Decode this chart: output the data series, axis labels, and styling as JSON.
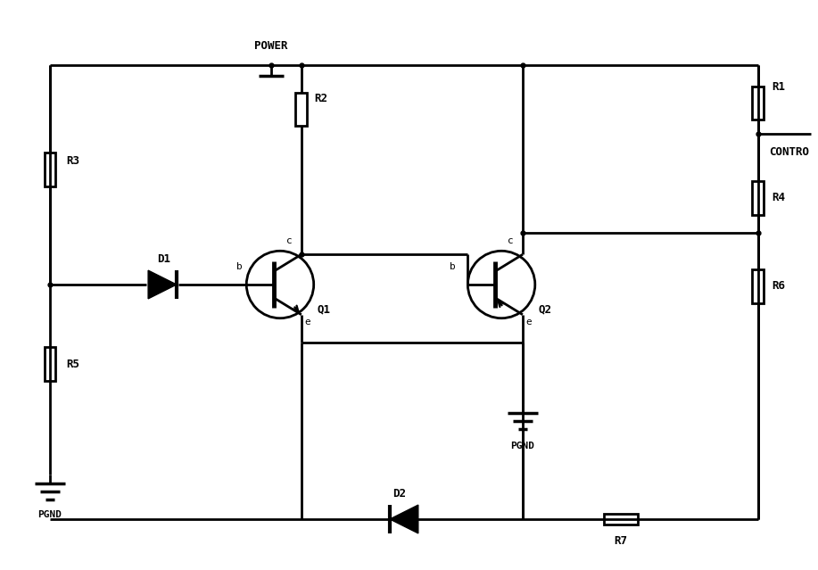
{
  "background": "#ffffff",
  "line_color": "#000000",
  "lw": 2.0,
  "figsize": [
    9.17,
    6.39
  ],
  "dpi": 100,
  "xlim": [
    0,
    9.17
  ],
  "ylim": [
    0,
    6.39
  ]
}
